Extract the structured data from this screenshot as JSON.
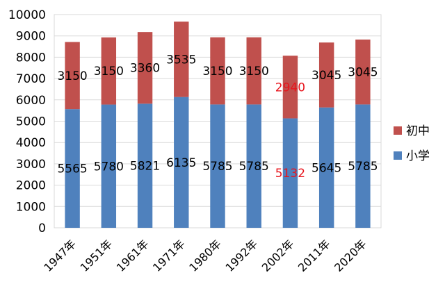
{
  "chart_data": {
    "type": "bar",
    "stacked": true,
    "title": "",
    "xlabel": "",
    "ylabel": "",
    "ylim": [
      0,
      10000
    ],
    "yticks": [
      0,
      1000,
      2000,
      3000,
      4000,
      5000,
      6000,
      7000,
      8000,
      9000,
      10000
    ],
    "grid": true,
    "legend_position": "right",
    "categories": [
      "1947年",
      "1951年",
      "1961年",
      "1971年",
      "1980年",
      "1992年",
      "2002年",
      "2011年",
      "2020年"
    ],
    "series": [
      {
        "name": "小学",
        "color": "#4F81BD",
        "values": [
          5565,
          5780,
          5821,
          6135,
          5785,
          5785,
          5132,
          5645,
          5785
        ]
      },
      {
        "name": "初中",
        "color": "#C0504D",
        "values": [
          3150,
          3150,
          3360,
          3535,
          3150,
          3150,
          2940,
          3045,
          3045
        ]
      }
    ],
    "label_colors": {
      "default": "#000000",
      "highlight": "#E8141C",
      "highlight_category": "2002年"
    }
  }
}
